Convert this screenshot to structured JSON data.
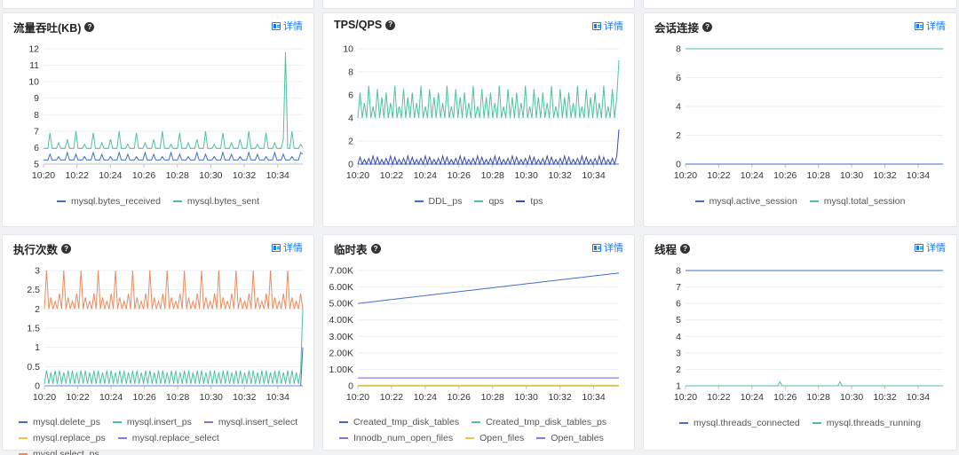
{
  "detail_label": "详情",
  "help_icon": "question-circle-icon",
  "detail_icon": "chart-detail-icon",
  "colors": {
    "blue": "#3f6fc7",
    "green": "#4cc39a",
    "purple": "#8a6fd6",
    "yellow": "#f2c14e",
    "indigo": "#7a7ee6",
    "orange": "#ef8a5c",
    "link": "#1677ff"
  },
  "panels": [
    {
      "title": "流量吞吐(KB)",
      "chart_data": {
        "type": "line",
        "x_ticks": [
          "10:20",
          "10:22",
          "10:24",
          "10:26",
          "10:28",
          "10:30",
          "10:32",
          "10:34"
        ],
        "y_ticks": [
          "5",
          "6",
          "7",
          "8",
          "9",
          "10",
          "11",
          "12"
        ],
        "ylim": [
          5,
          12
        ],
        "series": [
          {
            "name": "mysql.bytes_received",
            "color": "#3f6fc7",
            "pattern": {
              "base": 5.25,
              "spikes": [
                5.6,
                5.45,
                5.7
              ],
              "period": 4,
              "end": 5.6
            }
          },
          {
            "name": "mysql.bytes_sent",
            "color": "#4cc39a",
            "pattern": {
              "base": 5.95,
              "spikes": [
                6.9,
                6.3,
                6.5,
                7.0,
                6.2
              ],
              "period": 4,
              "jump_index": 0.93,
              "jump": 11.8,
              "end": 6.0
            }
          }
        ]
      }
    },
    {
      "title": "TPS/QPS",
      "chart_data": {
        "type": "line",
        "x_ticks": [
          "10:20",
          "10:22",
          "10:24",
          "10:26",
          "10:28",
          "10:30",
          "10:32",
          "10:34"
        ],
        "y_ticks": [
          "0",
          "2",
          "4",
          "6",
          "8",
          "10"
        ],
        "ylim": [
          0,
          10
        ],
        "series": [
          {
            "name": "DDL_ps",
            "color": "#3f6fc7",
            "pattern": {
              "base": 0,
              "spikes": [
                0
              ],
              "period": 4,
              "end": 0
            }
          },
          {
            "name": "qps",
            "color": "#4cc39a",
            "pattern": {
              "base": 4.0,
              "spikes": [
                6.2,
                5.3,
                6.8,
                5.0,
                6.5,
                5.8
              ],
              "period": 2,
              "end": 9.0
            }
          },
          {
            "name": "tps",
            "color": "#3a4bb0",
            "pattern": {
              "base": 0,
              "spikes": [
                0.6,
                0.4,
                0.5,
                0.7
              ],
              "period": 2,
              "end": 3.0
            }
          }
        ]
      }
    },
    {
      "title": "会话连接",
      "chart_data": {
        "type": "line",
        "x_ticks": [
          "10:20",
          "10:22",
          "10:24",
          "10:26",
          "10:28",
          "10:30",
          "10:32",
          "10:34"
        ],
        "y_ticks": [
          "0",
          "2",
          "4",
          "6",
          "8"
        ],
        "ylim": [
          0,
          8
        ],
        "series": [
          {
            "name": "mysql.active_session",
            "color": "#3f6fc7",
            "pattern": {
              "base": 0,
              "spikes": [
                0
              ],
              "period": 4,
              "end": 0
            }
          },
          {
            "name": "mysql.total_session",
            "color": "#4cc39a",
            "pattern": {
              "base": 8,
              "spikes": [
                8
              ],
              "period": 4,
              "end": 8
            }
          }
        ]
      }
    },
    {
      "title": "执行次数",
      "chart_data": {
        "type": "line",
        "x_ticks": [
          "10:20",
          "10:22",
          "10:24",
          "10:26",
          "10:28",
          "10:30",
          "10:32",
          "10:34"
        ],
        "y_ticks": [
          "0",
          "0.5",
          "1",
          "1.5",
          "2",
          "2.5",
          "3"
        ],
        "ylim": [
          0,
          3
        ],
        "series": [
          {
            "name": "mysql.delete_ps",
            "color": "#3f6fc7",
            "pattern": {
              "base": 0,
              "spikes": [
                0
              ],
              "period": 4,
              "end": 1.0
            }
          },
          {
            "name": "mysql.insert_ps",
            "color": "#4cc39a",
            "pattern": {
              "base": 0.05,
              "spikes": [
                0.4,
                0.35,
                0.4
              ],
              "period": 2,
              "end": 2.0
            }
          },
          {
            "name": "mysql.insert_select",
            "color": "#8a6fd6",
            "pattern": {
              "base": 0,
              "spikes": [
                0
              ],
              "period": 4,
              "end": 0
            }
          },
          {
            "name": "mysql.replace_ps",
            "color": "#f2c14e",
            "pattern": {
              "base": 0,
              "spikes": [
                0
              ],
              "period": 4,
              "end": 0
            }
          },
          {
            "name": "mysql.replace_select",
            "color": "#7a7ee6",
            "pattern": {
              "base": 0,
              "spikes": [
                0
              ],
              "period": 4,
              "end": 0
            }
          },
          {
            "name": "mysql.select_ps",
            "color": "#ef8a5c",
            "pattern": {
              "base": 2.0,
              "spikes": [
                3.0,
                2.3,
                2.2,
                2.4
              ],
              "period": 2,
              "end": 2.0
            }
          }
        ]
      }
    },
    {
      "title": "临时表",
      "chart_data": {
        "type": "line",
        "x_ticks": [
          "10:20",
          "10:22",
          "10:24",
          "10:26",
          "10:28",
          "10:30",
          "10:32",
          "10:34"
        ],
        "y_ticks": [
          "0",
          "1.00K",
          "2.00K",
          "3.00K",
          "4.00K",
          "5.00K",
          "6.00K",
          "7.00K"
        ],
        "ylim": [
          0,
          7000
        ],
        "series": [
          {
            "name": "Created_tmp_disk_tables",
            "color": "#3f6fc7",
            "linear": [
              5000,
              6850
            ]
          },
          {
            "name": "Created_tmp_disk_tables_ps",
            "color": "#4cc39a",
            "linear": [
              0,
              0
            ]
          },
          {
            "name": "Innodb_num_open_files",
            "color": "#8a6fd6",
            "linear": [
              480,
              480
            ]
          },
          {
            "name": "Open_files",
            "color": "#f2c14e",
            "linear": [
              30,
              30
            ]
          },
          {
            "name": "Open_tables",
            "color": "#7a7ee6",
            "linear": [
              480,
              480
            ]
          }
        ]
      }
    },
    {
      "title": "线程",
      "chart_data": {
        "type": "line",
        "x_ticks": [
          "10:20",
          "10:22",
          "10:24",
          "10:26",
          "10:28",
          "10:30",
          "10:32",
          "10:34"
        ],
        "y_ticks": [
          "1",
          "2",
          "3",
          "4",
          "5",
          "6",
          "7",
          "8"
        ],
        "ylim": [
          1,
          8
        ],
        "series": [
          {
            "name": "mysql.threads_connected",
            "color": "#3f6fc7",
            "pattern": {
              "base": 8,
              "spikes": [
                8
              ],
              "period": 4,
              "end": 8
            }
          },
          {
            "name": "mysql.threads_running",
            "color": "#4cc39a",
            "pattern": {
              "base": 1,
              "spikes": [
                1
              ],
              "period": 4,
              "end": 1,
              "bumps": [
                [
                  0.37,
                  1.25
                ],
                [
                  0.6,
                  1.25
                ]
              ]
            }
          }
        ]
      }
    }
  ]
}
